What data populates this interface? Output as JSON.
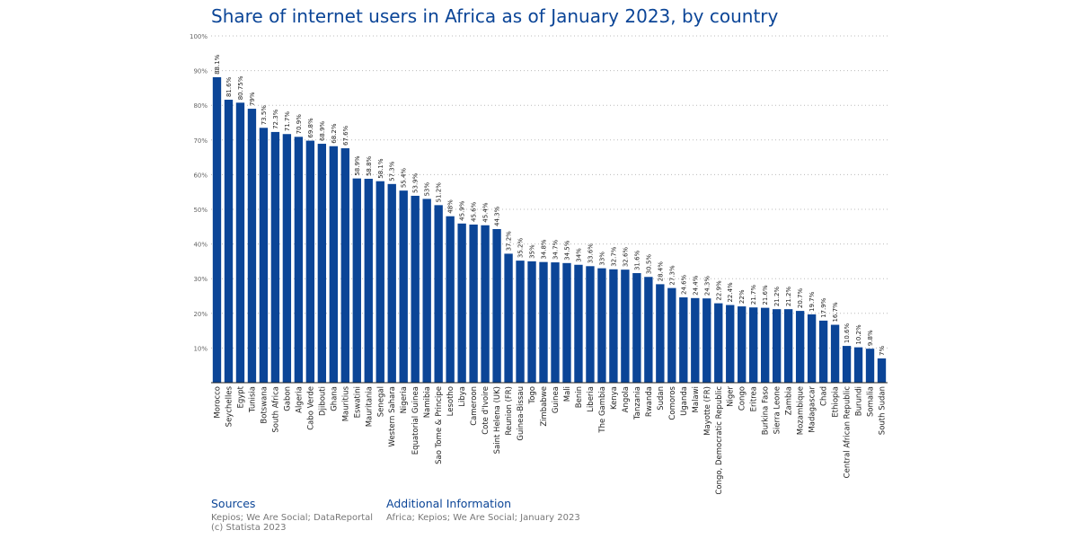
{
  "chart_data": {
    "type": "bar",
    "title": "Share of internet users in Africa as of January 2023, by country",
    "xlabel": "",
    "ylabel": "",
    "ylim": [
      0,
      100
    ],
    "y_ticks": [
      "10%",
      "20%",
      "30%",
      "40%",
      "50%",
      "60%",
      "70%",
      "80%",
      "90%",
      "100%"
    ],
    "grid": true,
    "bar_color": "#0b4597",
    "categories": [
      "Morocco",
      "Seychelles",
      "Egypt",
      "Tunisia",
      "Botswana",
      "South Africa",
      "Gabon",
      "Algeria",
      "Cabo Verde",
      "Djibouti",
      "Ghana",
      "Mauritius",
      "Eswatini",
      "Mauritania",
      "Senegal",
      "Western Sahara",
      "Nigeria",
      "Equatorial Guinea",
      "Namibia",
      "Sao Tome & Principe",
      "Lesotho",
      "Libya",
      "Cameroon",
      "Cote d'Ivoire",
      "Saint Helena (UK)",
      "Reunion (FR)",
      "Guinea-Bissau",
      "Togo",
      "Zimbabwe",
      "Guinea",
      "Mali",
      "Benin",
      "Liberia",
      "The Gambia",
      "Kenya",
      "Angola",
      "Tanzania",
      "Rwanda",
      "Sudan",
      "Comoros",
      "Uganda",
      "Malawi",
      "Mayotte (FR)",
      "Congo, Democratic Republic",
      "Niger",
      "Congo",
      "Eritrea",
      "Burkina Faso",
      "Sierra Leone",
      "Zambia",
      "Mozambique",
      "Madagascar",
      "Chad",
      "Ethiopia",
      "Central African Republic",
      "Burundi",
      "Somalia",
      "South Sudan"
    ],
    "values": [
      88.1,
      81.6,
      80.75,
      79,
      73.5,
      72.3,
      71.7,
      70.9,
      69.8,
      68.9,
      68.2,
      67.6,
      58.9,
      58.8,
      58.1,
      57.3,
      55.4,
      53.9,
      53,
      51.2,
      48,
      45.9,
      45.6,
      45.4,
      44.3,
      37.2,
      35.2,
      35,
      34.8,
      34.7,
      34.5,
      34,
      33.6,
      33,
      32.7,
      32.6,
      31.6,
      30.5,
      28.4,
      27.3,
      24.6,
      24.4,
      24.3,
      22.9,
      22.4,
      22,
      21.7,
      21.6,
      21.2,
      21.2,
      20.7,
      19.7,
      17.9,
      16.7,
      10.6,
      10.2,
      9.8,
      7
    ],
    "data_labels": [
      "88.1%",
      "81.6%",
      "80.75%",
      "79%",
      "73.5%",
      "72.3%",
      "71.7%",
      "70.9%",
      "69.8%",
      "68.9%",
      "68.2%",
      "67.6%",
      "58.9%",
      "58.8%",
      "58.1%",
      "57.3%",
      "55.4%",
      "53.9%",
      "53%",
      "51.2%",
      "48%",
      "45.9%",
      "45.6%",
      "45.4%",
      "44.3%",
      "37.2%",
      "35.2%",
      "35%",
      "34.8%",
      "34.7%",
      "34.5%",
      "34%",
      "33.6%",
      "33%",
      "32.7%",
      "32.6%",
      "31.6%",
      "30.5%",
      "28.4%",
      "27.3%",
      "24.6%",
      "24.4%",
      "24.3%",
      "22.9%",
      "22.4%",
      "22%",
      "21.7%",
      "21.6%",
      "21.2%",
      "21.2%",
      "20.7%",
      "19.7%",
      "17.9%",
      "16.7%",
      "10.6%",
      "10.2%",
      "9.8%",
      "7%"
    ]
  },
  "footer": {
    "sources_heading": "Sources",
    "sources_line1": "Kepios; We Are Social; DataReportal",
    "sources_line2": "(c) Statista 2023",
    "info_heading": "Additional Information",
    "info_text": "Africa; Kepios; We Are Social; January 2023"
  }
}
